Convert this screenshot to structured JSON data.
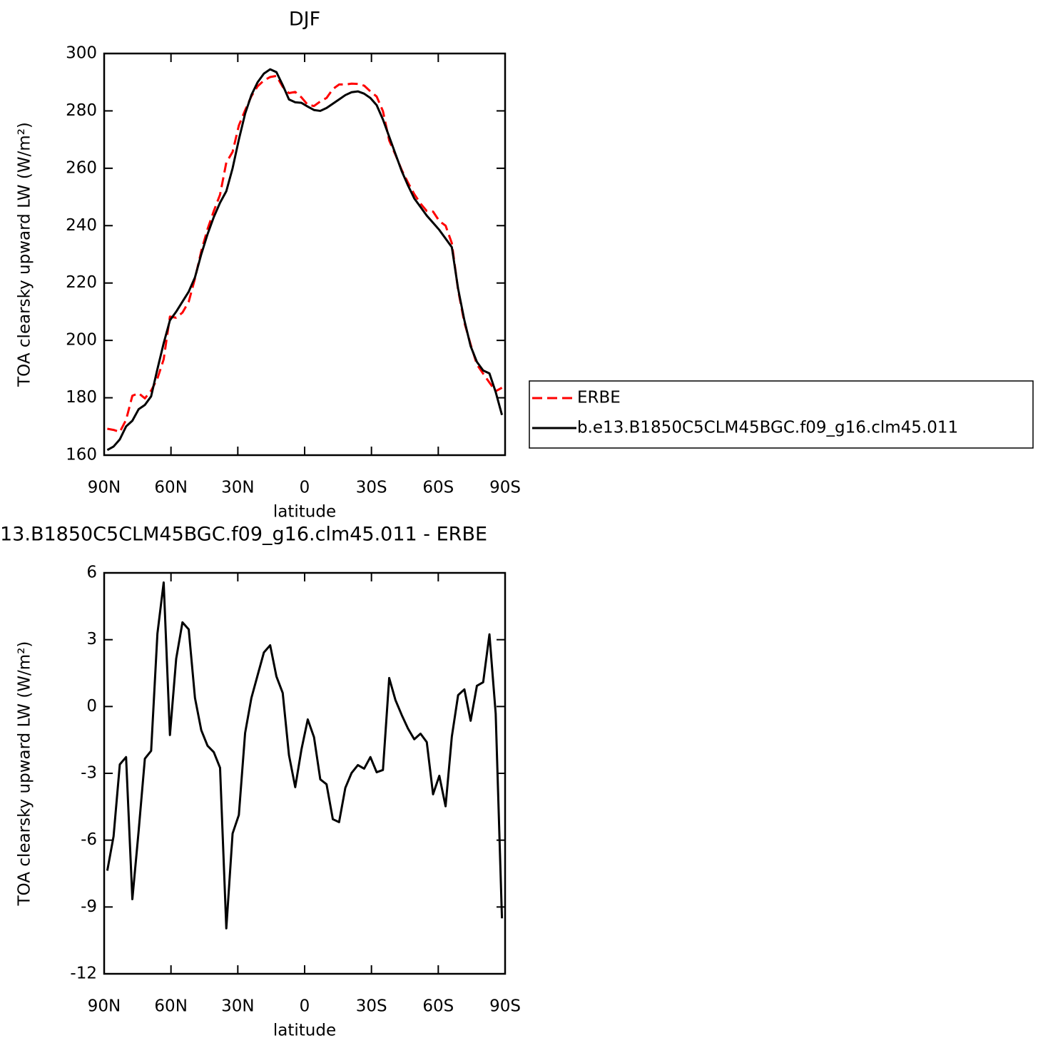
{
  "chart_data": [
    {
      "type": "line",
      "title": "DJF",
      "xlabel": "latitude",
      "ylabel": "TOA clearsky upward LW (W/m²)",
      "x": [
        88.59,
        85.78,
        82.97,
        80.16,
        77.34,
        74.53,
        71.72,
        68.91,
        66.09,
        63.28,
        60.47,
        57.66,
        54.84,
        52.03,
        49.22,
        46.41,
        43.59,
        40.78,
        37.97,
        35.16,
        32.34,
        29.53,
        26.72,
        23.91,
        21.09,
        18.28,
        15.47,
        12.66,
        9.84,
        7.03,
        4.22,
        1.41,
        -1.41,
        -4.22,
        -7.03,
        -9.84,
        -12.66,
        -15.47,
        -18.28,
        -21.09,
        -23.91,
        -26.72,
        -29.53,
        -32.34,
        -35.16,
        -37.97,
        -40.78,
        -43.59,
        -46.41,
        -49.22,
        -52.03,
        -54.84,
        -57.66,
        -60.47,
        -63.28,
        -66.09,
        -68.91,
        -71.72,
        -74.53,
        -77.34,
        -80.16,
        -82.97,
        -85.78,
        -88.59
      ],
      "series": [
        {
          "name": "ERBE",
          "color": "#ff0000",
          "style": "dashed",
          "values": [
            169.2,
            168.8,
            168.1,
            172.3,
            180.7,
            181.6,
            179.8,
            182.5,
            186.7,
            193.4,
            208.3,
            207.9,
            209.7,
            213.5,
            221.6,
            231.1,
            238.8,
            245.1,
            250.8,
            262.0,
            265.7,
            274.9,
            280.2,
            285.1,
            288.6,
            290.6,
            291.8,
            292.2,
            288.4,
            286.2,
            286.6,
            284.7,
            282.1,
            281.7,
            283.3,
            284.5,
            287.6,
            289.2,
            289.2,
            289.5,
            289.4,
            288.8,
            286.8,
            285.0,
            279.9,
            269.7,
            264.7,
            259.4,
            255.0,
            251.0,
            247.7,
            245.1,
            244.9,
            241.6,
            240.0,
            233.9,
            217.5,
            206.2,
            198.6,
            191.6,
            188.4,
            185.3,
            182.3,
            183.5
          ]
        },
        {
          "name": "b.e13.B1850C5CLM45BGC.f09_g16.clm45.011",
          "color": "#000000",
          "style": "solid",
          "values": [
            161.8,
            163.0,
            165.5,
            170.0,
            172.0,
            176.0,
            177.5,
            180.5,
            190.0,
            199.0,
            207.0,
            210.0,
            213.5,
            217.0,
            222.0,
            230.0,
            237.0,
            243.0,
            248.0,
            252.0,
            260.0,
            270.0,
            279.0,
            285.5,
            290.0,
            293.0,
            294.5,
            293.5,
            289.0,
            284.0,
            283.0,
            282.8,
            281.5,
            280.3,
            280.0,
            281.0,
            282.5,
            284.0,
            285.5,
            286.5,
            286.8,
            286.0,
            284.5,
            282.0,
            277.0,
            271.0,
            265.0,
            259.0,
            254.0,
            249.5,
            246.5,
            243.5,
            241.0,
            238.5,
            235.5,
            232.5,
            218.0,
            207.0,
            198.0,
            192.5,
            189.5,
            188.5,
            182.0,
            174.0
          ]
        }
      ],
      "xlim": [
        90,
        -90
      ],
      "xticks": [
        {
          "value": 90,
          "label": "90N"
        },
        {
          "value": 60,
          "label": "60N"
        },
        {
          "value": 30,
          "label": "30N"
        },
        0,
        {
          "value": -30,
          "label": "30S"
        },
        {
          "value": -60,
          "label": "60S"
        },
        {
          "value": -90,
          "label": "90S"
        }
      ],
      "ylim": [
        160,
        300
      ],
      "yticks": [
        160,
        180,
        200,
        220,
        240,
        260,
        280,
        300
      ],
      "grid": false,
      "legend": "right"
    },
    {
      "type": "line",
      "title": "13.B1850C5CLM45BGC.f09_g16.clm45.011 - ERBE",
      "xlabel": "latitude",
      "ylabel": "TOA clearsky upward LW (W/m²)",
      "x": [
        88.59,
        85.78,
        82.97,
        80.16,
        77.34,
        74.53,
        71.72,
        68.91,
        66.09,
        63.28,
        60.47,
        57.66,
        54.84,
        52.03,
        49.22,
        46.41,
        43.59,
        40.78,
        37.97,
        35.16,
        32.34,
        29.53,
        26.72,
        23.91,
        21.09,
        18.28,
        15.47,
        12.66,
        9.84,
        7.03,
        4.22,
        1.41,
        -1.41,
        -4.22,
        -7.03,
        -9.84,
        -12.66,
        -15.47,
        -18.28,
        -21.09,
        -23.91,
        -26.72,
        -29.53,
        -32.34,
        -35.16,
        -37.97,
        -40.78,
        -43.59,
        -46.41,
        -49.22,
        -52.03,
        -54.84,
        -57.66,
        -60.47,
        -63.28,
        -66.09,
        -68.91,
        -71.72,
        -74.53,
        -77.34,
        -80.16,
        -82.97,
        -85.78,
        -88.59
      ],
      "values": [
        -7.37,
        -5.83,
        -2.6,
        -2.27,
        -8.65,
        -5.6,
        -2.34,
        -1.99,
        3.27,
        5.57,
        -1.28,
        2.15,
        3.78,
        3.46,
        0.38,
        -1.06,
        -1.76,
        -2.05,
        -2.75,
        -9.96,
        -5.7,
        -4.87,
        -1.19,
        0.38,
        1.41,
        2.43,
        2.75,
        1.35,
        0.61,
        -2.18,
        -3.62,
        -1.92,
        -0.58,
        -1.38,
        -3.27,
        -3.49,
        -5.06,
        -5.19,
        -3.65,
        -2.98,
        -2.63,
        -2.79,
        -2.27,
        -2.95,
        -2.85,
        1.28,
        0.29,
        -0.38,
        -0.99,
        -1.47,
        -1.22,
        -1.6,
        -3.94,
        -3.11,
        -4.48,
        -1.35,
        0.51,
        0.77,
        -0.64,
        0.93,
        1.09,
        3.24,
        -0.32,
        -9.51
      ],
      "color": "#000000",
      "xlim": [
        90,
        -90
      ],
      "xticks": [
        {
          "value": 90,
          "label": "90N"
        },
        {
          "value": 60,
          "label": "60N"
        },
        {
          "value": 30,
          "label": "30N"
        },
        0,
        {
          "value": -30,
          "label": "30S"
        },
        {
          "value": -60,
          "label": "60S"
        },
        {
          "value": -90,
          "label": "90S"
        }
      ],
      "ylim": [
        -12,
        6
      ],
      "yticks": [
        -12,
        -9,
        -6,
        -3,
        0,
        3,
        6
      ],
      "grid": false
    }
  ]
}
